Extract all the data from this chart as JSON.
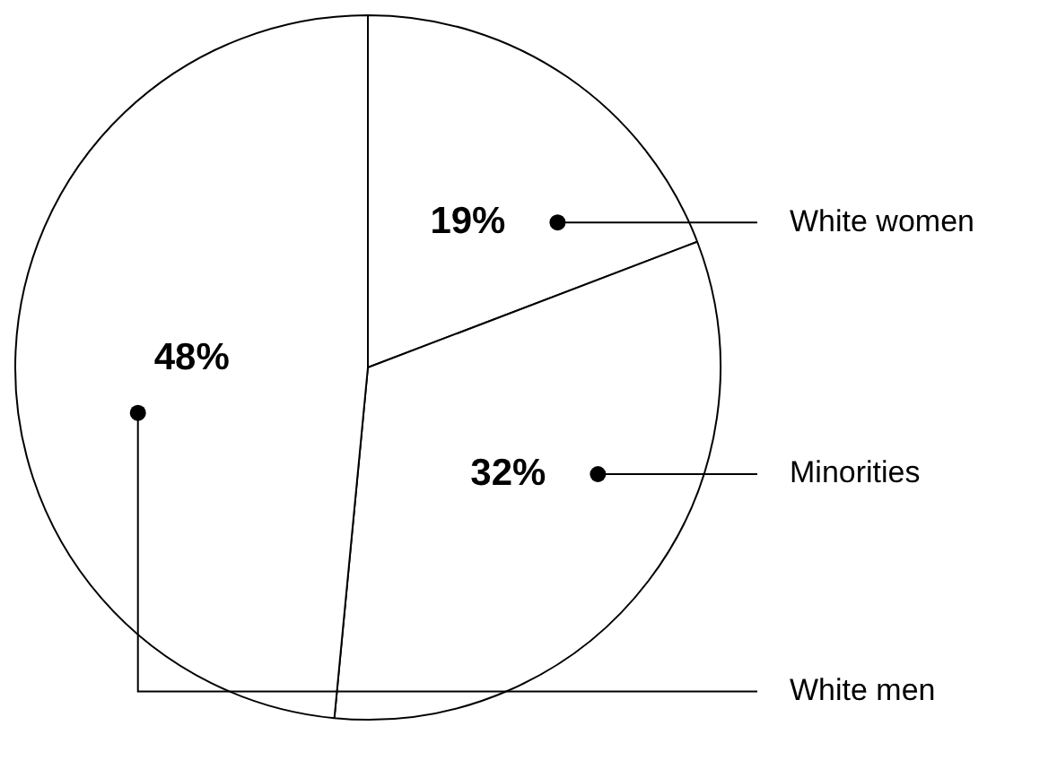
{
  "chart_data": {
    "type": "pie",
    "categories": [
      "White women",
      "Minorities",
      "White men"
    ],
    "values": [
      19,
      32,
      48
    ],
    "colors": [
      "#ffffff",
      "#ffffff",
      "#ffffff"
    ],
    "value_labels": [
      "19%",
      "32%",
      "48%"
    ]
  }
}
